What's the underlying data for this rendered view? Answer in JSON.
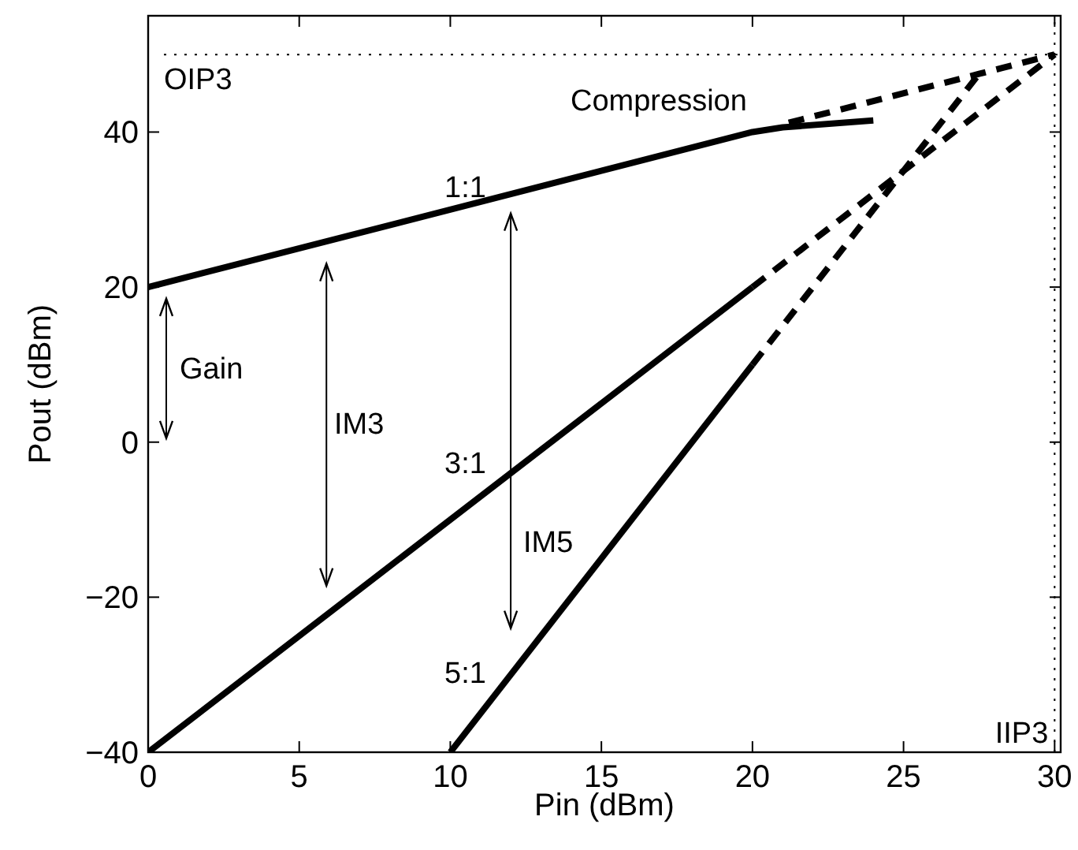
{
  "chart_data": {
    "type": "line",
    "xlabel": "Pin (dBm)",
    "ylabel": "Pout (dBm)",
    "xlim": [
      0,
      30.2
    ],
    "ylim": [
      -40,
      55
    ],
    "xticks": [
      0,
      5,
      10,
      15,
      20,
      25,
      30
    ],
    "yticks": [
      -40,
      -20,
      0,
      20,
      40
    ],
    "series": [
      {
        "color": "#000000",
        "line_style": "solid",
        "x": [
          0,
          20,
          21,
          24
        ],
        "values": [
          20,
          40,
          40.6,
          41.5
        ]
      },
      {
        "color": "#000000",
        "line_style": "dashed",
        "x": [
          21.2,
          27.5,
          30
        ],
        "values": [
          41.2,
          47.5,
          50
        ]
      },
      {
        "color": "#000000",
        "line_style": "solid",
        "x": [
          0,
          20
        ],
        "values": [
          -40,
          20
        ]
      },
      {
        "color": "#000000",
        "line_style": "dashed",
        "x": [
          20,
          30
        ],
        "values": [
          20,
          50
        ]
      },
      {
        "color": "#000000",
        "line_style": "solid",
        "x": [
          10,
          20
        ],
        "values": [
          -40,
          10
        ]
      },
      {
        "color": "#000000",
        "line_style": "dashed",
        "x": [
          20,
          27.5
        ],
        "values": [
          10,
          47.5
        ]
      }
    ],
    "ref_lines": [
      {
        "axis": "y",
        "value": 50,
        "label": "OIP3",
        "line_style": "dotted"
      },
      {
        "axis": "x",
        "value": 30,
        "label": "IIP3",
        "line_style": "dotted"
      }
    ],
    "annotations": [
      "1:1",
      "Compression",
      "3:1",
      "5:1",
      "Gain",
      "IM3",
      "IM5"
    ],
    "grid": false
  }
}
